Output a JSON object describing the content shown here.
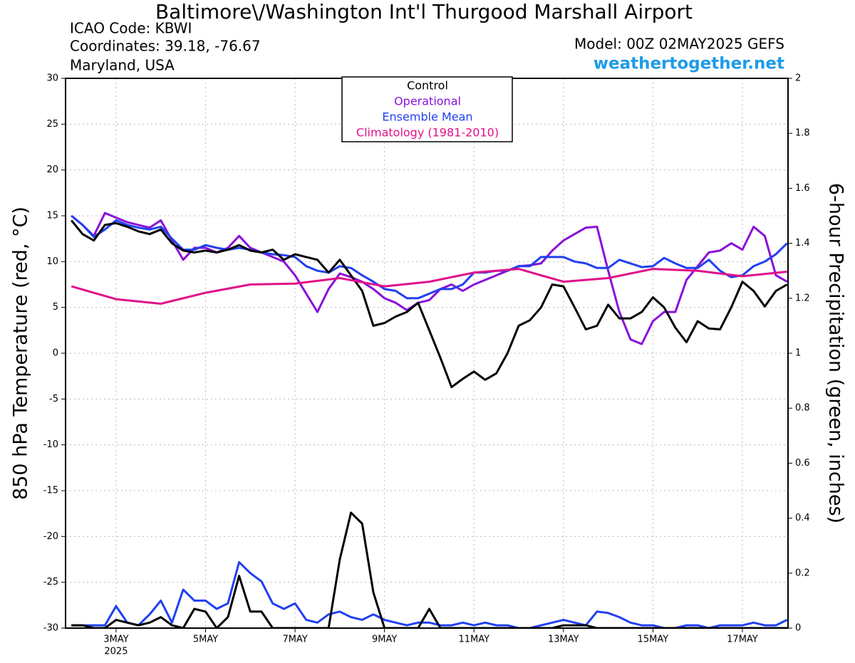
{
  "chart_data": {
    "type": "line",
    "title": "Baltimore\\/Washington Int'l Thurgood Marshall Airport",
    "info_left": [
      "ICAO Code: KBWI",
      "Coordinates: 39.18, -76.67",
      "Maryland, USA"
    ],
    "model": "Model: 00Z 02MAY2025 GEFS",
    "website": "weathertogether.net",
    "y_label": "850 hPa Temperature (red, °C)",
    "y2_label": "6-hour Precipitation (green, inches)",
    "x_sublabel": "2025",
    "legend": [
      {
        "name": "Control",
        "color": "#000000"
      },
      {
        "name": "Operational",
        "color": "#8a10d8"
      },
      {
        "name": "Ensemble Mean",
        "color": "#2040f0"
      },
      {
        "name": "Climatology (1981-2010)",
        "color": "#e0108a"
      }
    ],
    "xlim": [
      1.87,
      18.02
    ],
    "xticks": [
      {
        "value": 3,
        "label": "3MAY"
      },
      {
        "value": 5,
        "label": "5MAY"
      },
      {
        "value": 7,
        "label": "7MAY"
      },
      {
        "value": 9,
        "label": "9MAY"
      },
      {
        "value": 11,
        "label": "11MAY"
      },
      {
        "value": 13,
        "label": "13MAY"
      },
      {
        "value": 15,
        "label": "15MAY"
      },
      {
        "value": 17,
        "label": "17MAY"
      }
    ],
    "ylim": [
      -30,
      30
    ],
    "yticks": [
      30,
      25,
      20,
      15,
      10,
      5,
      0,
      -5,
      -10,
      -15,
      -20,
      -25,
      -30
    ],
    "y2lim": [
      0,
      2
    ],
    "y2ticks": [
      2,
      1.8,
      1.6,
      1.4,
      1.2,
      1,
      0.8,
      0.6,
      0.4,
      0.2,
      0
    ],
    "grid": true,
    "x": [
      2,
      2.25,
      2.5,
      2.75,
      3,
      3.25,
      3.5,
      3.75,
      4,
      4.25,
      4.5,
      4.75,
      5,
      5.25,
      5.5,
      5.75,
      6,
      6.25,
      6.5,
      6.75,
      7,
      7.25,
      7.5,
      7.75,
      8,
      8.25,
      8.5,
      8.75,
      9,
      9.25,
      9.5,
      9.75,
      10,
      10.25,
      10.5,
      10.75,
      11,
      11.25,
      11.5,
      11.75,
      12,
      12.25,
      12.5,
      12.75,
      13,
      13.25,
      13.5,
      13.75,
      14,
      14.25,
      14.5,
      14.75,
      15,
      15.25,
      15.5,
      15.75,
      16,
      16.25,
      16.5,
      16.75,
      17,
      17.25,
      17.5,
      17.75,
      18
    ],
    "series": [
      {
        "color": "#8a10d8",
        "width": 3,
        "values": [
          15,
          14,
          12.8,
          15.3,
          14.8,
          14.3,
          14,
          13.7,
          14.5,
          12.3,
          10.2,
          11.5,
          11.5,
          11,
          11.5,
          12.8,
          11.5,
          11,
          10.5,
          10,
          8.5,
          6.5,
          4.5,
          7,
          8.7,
          8.3,
          7.8,
          7,
          6,
          5.5,
          4.7,
          5.5,
          5.8,
          7,
          7.5,
          6.8,
          7.5,
          8,
          8.5,
          9,
          9.5,
          9.6,
          9.8,
          11.2,
          12.3,
          13,
          13.7,
          13.8,
          9,
          4.5,
          1.5,
          1,
          3.5,
          4.5,
          4.5,
          8,
          9.5,
          11,
          11.2,
          12,
          11.3,
          13.8,
          12.8,
          8.5,
          7.8
        ]
      },
      {
        "color": "#2040f0",
        "width": 3,
        "values": [
          15,
          14,
          12.7,
          13.5,
          14.5,
          14,
          13.7,
          13.5,
          13.8,
          12.5,
          11.3,
          11.3,
          11.8,
          11.5,
          11.3,
          11.5,
          11.3,
          11,
          10.8,
          10.7,
          10.5,
          9.5,
          9,
          8.8,
          9.5,
          9.3,
          8.5,
          7.8,
          7,
          6.8,
          6,
          6,
          6.5,
          7,
          7,
          7.5,
          8.8,
          8.8,
          9,
          9,
          9.5,
          9.5,
          10.5,
          10.5,
          10.5,
          10,
          9.8,
          9.3,
          9.3,
          10.2,
          9.8,
          9.4,
          9.5,
          10.4,
          9.8,
          9.3,
          9.3,
          10.2,
          9,
          8.3,
          8.5,
          9.5,
          10,
          10.8,
          12
        ]
      },
      {
        "color": "#000000",
        "width": 3,
        "values": [
          14.5,
          13,
          12.3,
          14,
          14.2,
          13.8,
          13.3,
          13,
          13.5,
          12,
          11.2,
          11,
          11.2,
          11,
          11.3,
          11.8,
          11.2,
          11,
          11.3,
          10.2,
          10.8,
          10.5,
          10.2,
          8.8,
          10.2,
          8.5,
          6.8,
          3,
          3.3,
          4,
          4.5,
          5.5,
          2.5,
          -0.5,
          -3.7,
          -2.8,
          -2,
          -2.9,
          -2.2,
          0,
          3,
          3.6,
          5,
          7.5,
          7.3,
          5,
          2.6,
          3,
          5.3,
          3.8,
          3.8,
          4.5,
          6.1,
          5,
          2.8,
          1.2,
          3.5,
          2.7,
          2.6,
          5,
          7.8,
          6.8,
          5.1,
          6.8,
          7.5
        ]
      },
      {
        "color": "#e0108a",
        "width": 3,
        "x": [
          2,
          3,
          4,
          5,
          6,
          7,
          8,
          9,
          10,
          11,
          12,
          13,
          14,
          15,
          16,
          17,
          18
        ],
        "values": [
          7.3,
          5.9,
          5.4,
          6.6,
          7.5,
          7.6,
          8.2,
          7.3,
          7.8,
          8.8,
          9.2,
          7.8,
          8.2,
          9.2,
          9,
          8.4,
          8.9
        ]
      },
      {
        "color": "#2040f0",
        "width": 3,
        "axis": "y2",
        "values": [
          0.01,
          0.01,
          0.01,
          0.01,
          0.08,
          0.02,
          0.01,
          0.05,
          0.1,
          0.02,
          0.14,
          0.1,
          0.1,
          0.07,
          0.09,
          0.24,
          0.2,
          0.17,
          0.09,
          0.07,
          0.09,
          0.03,
          0.02,
          0.05,
          0.06,
          0.04,
          0.03,
          0.05,
          0.03,
          0.02,
          0.01,
          0.02,
          0.02,
          0.01,
          0.01,
          0.02,
          0.01,
          0.02,
          0.01,
          0.01,
          0,
          0,
          0.01,
          0.02,
          0.03,
          0.02,
          0.01,
          0.06,
          0.055,
          0.04,
          0.02,
          0.01,
          0.01,
          0,
          0,
          0.01,
          0.01,
          0,
          0.01,
          0.01,
          0.01,
          0.02,
          0.01,
          0.01,
          0.03
        ]
      },
      {
        "color": "#000000",
        "width": 3,
        "axis": "y2",
        "values": [
          0.01,
          0.01,
          0,
          0,
          0.03,
          0.02,
          0.01,
          0.02,
          0.04,
          0.01,
          0,
          0.07,
          0.06,
          0,
          0.04,
          0.19,
          0.06,
          0.06,
          0,
          0,
          0,
          0,
          0,
          0,
          0.25,
          0.42,
          0.38,
          0.13,
          0,
          0,
          0,
          0,
          0.07,
          0,
          0,
          0,
          0,
          0,
          0,
          0,
          0,
          0,
          0,
          0,
          0.01,
          0.01,
          0.01,
          0,
          0,
          0,
          0,
          0,
          0,
          0,
          0,
          0,
          0,
          0,
          0,
          0,
          0,
          0,
          0,
          0,
          0
        ]
      }
    ]
  }
}
